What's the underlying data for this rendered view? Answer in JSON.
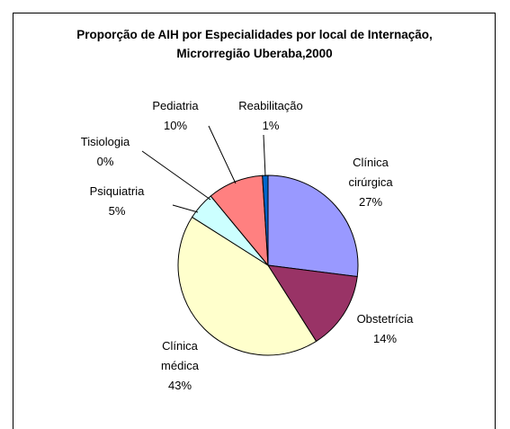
{
  "chart_data": {
    "type": "pie",
    "title": "Proporção de AIH por Especialidades por local de Internação, Microrregião Uberaba,2000",
    "categories": [
      "Clínica cirúrgica",
      "Obstetrícia",
      "Clínica médica",
      "Psiquiatria",
      "Tisiologia",
      "Pediatria",
      "Reabilitação"
    ],
    "values": [
      27,
      14,
      43,
      5,
      0,
      10,
      1
    ],
    "value_labels": [
      "27%",
      "14%",
      "43%",
      "5%",
      "0%",
      "10%",
      "1%"
    ],
    "colors": [
      "#9999ff",
      "#993366",
      "#ffffcc",
      "#ccffff",
      "#660066",
      "#ff8080",
      "#0066cc"
    ]
  }
}
